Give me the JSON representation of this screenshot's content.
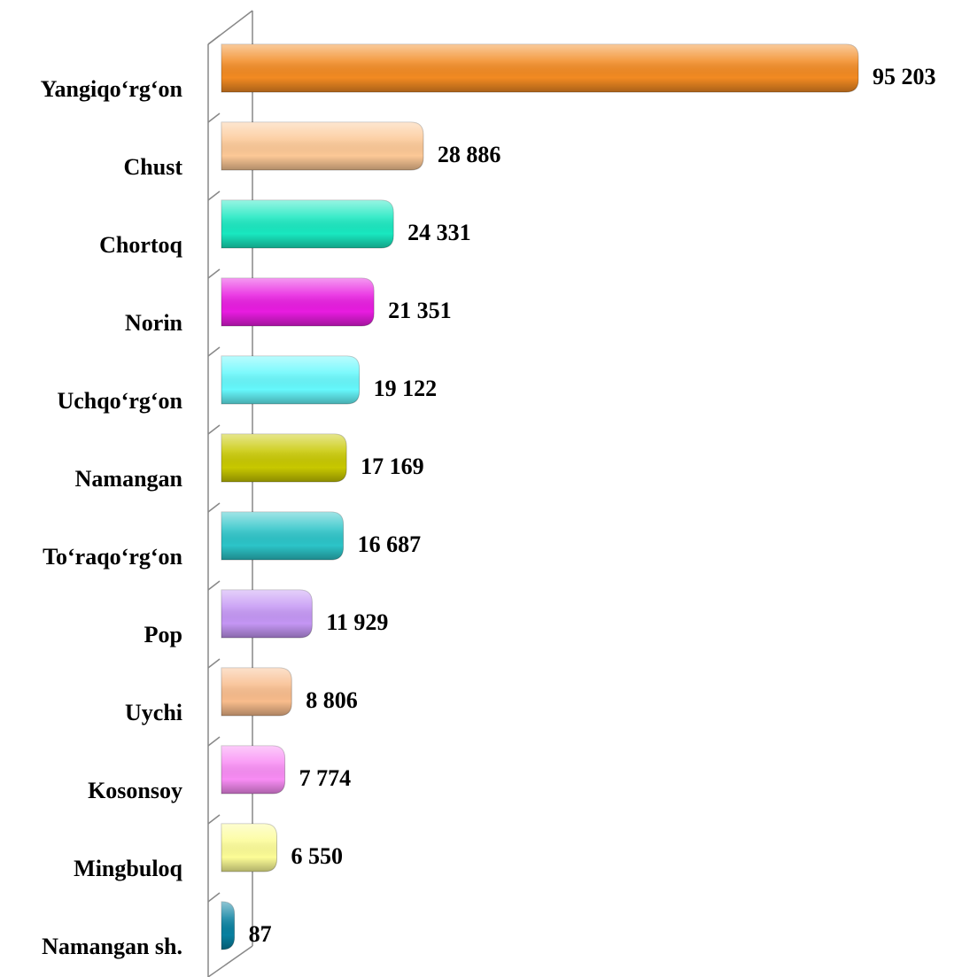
{
  "chart_data": {
    "type": "bar",
    "orientation": "horizontal",
    "categories": [
      "Yangiqo‘rg‘on",
      "Chust",
      "Chortoq",
      "Norin",
      "Uchqo‘rg‘on",
      "Namangan",
      "To‘raqo‘rg‘on",
      "Pop",
      "Uychi",
      "Kosonsoy",
      "Mingbuloq",
      "Namangan sh."
    ],
    "values": [
      95203,
      28886,
      24331,
      21351,
      19122,
      17169,
      16687,
      11929,
      8806,
      7774,
      6550,
      87
    ],
    "value_labels": [
      "95 203",
      "28 886",
      "24 331",
      "21 351",
      "19 122",
      "17 169",
      "16 687",
      "11 929",
      "8 806",
      "7 774",
      "6 550",
      "87"
    ],
    "colors": [
      "#f28a22",
      "#fcc896",
      "#19e8c0",
      "#e81ce0",
      "#66f8fc",
      "#c8c800",
      "#2cc4c8",
      "#c496f4",
      "#f8bc8c",
      "#f88cf4",
      "#fcfc96",
      "#0880a0"
    ]
  }
}
